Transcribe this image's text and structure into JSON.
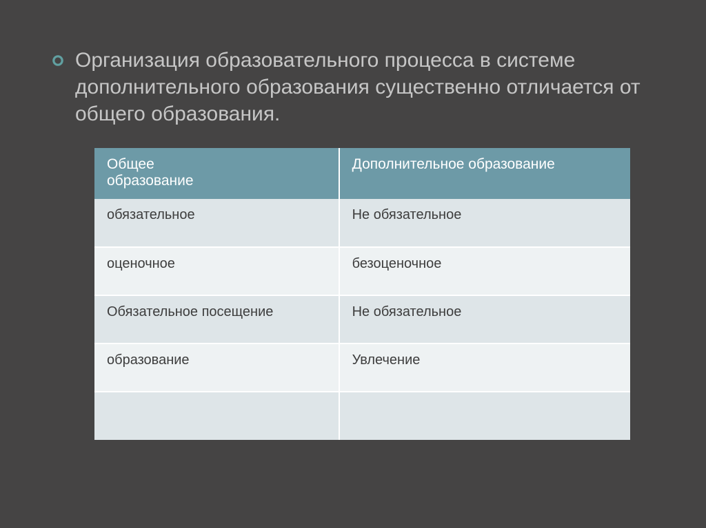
{
  "background_color": "#454444",
  "bullet": {
    "ring_color": "#61a0a1",
    "text_color": "#c6c6c6",
    "text": "Организация образовательного процесса в системе дополнительного образования существенно отличается от общего образования.",
    "font_size": 30
  },
  "table": {
    "type": "table",
    "header_bg": "#6d9aa7",
    "header_text_color": "#ffffff",
    "row_odd_bg": "#dee5e8",
    "row_even_bg": "#eef2f3",
    "cell_text_color": "#3d3d3d",
    "border_color": "#ffffff",
    "header_fontsize": 21,
    "cell_fontsize": 20,
    "columns": [
      "Общее\n образование",
      "Дополнительное образование"
    ],
    "rows": [
      [
        "обязательное",
        "Не обязательное"
      ],
      [
        "оценочное",
        "безоценочное"
      ],
      [
        "Обязательное посещение",
        "Не обязательное"
      ],
      [
        "образование",
        "Увлечение"
      ],
      [
        "",
        ""
      ]
    ]
  }
}
